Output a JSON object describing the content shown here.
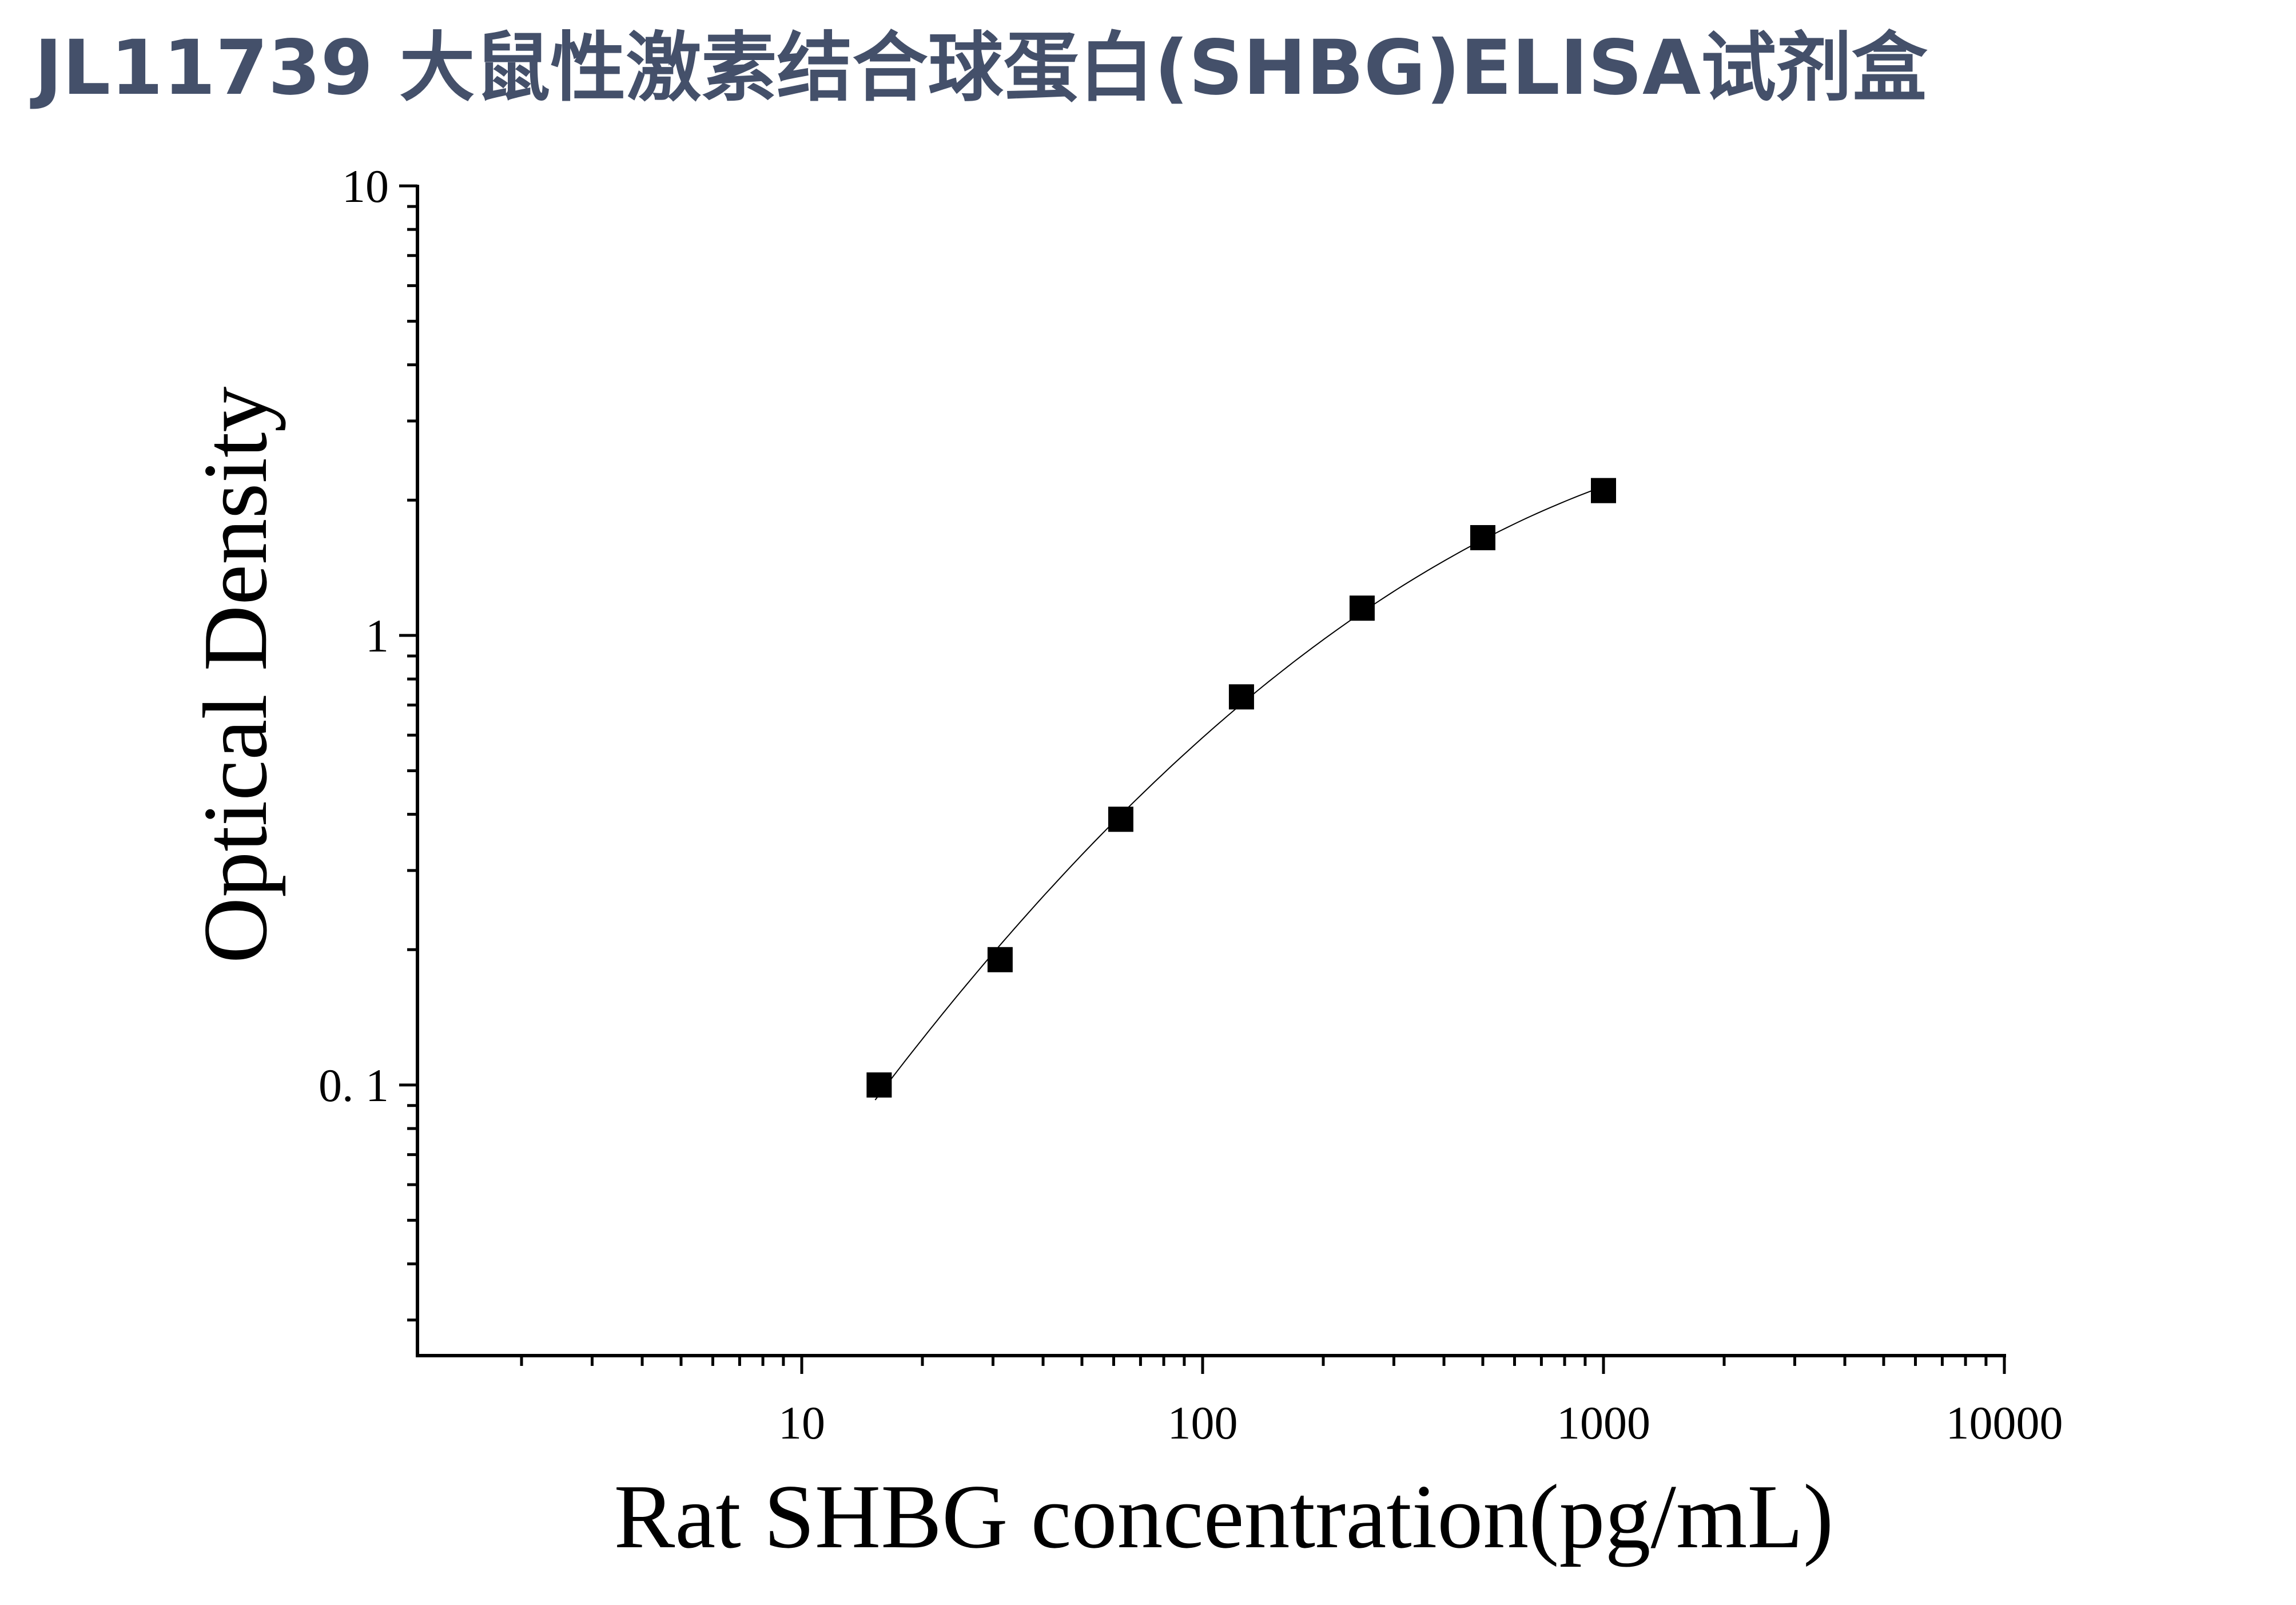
{
  "title": "JL11739 大鼠性激素结合球蛋白(SHBG)ELISA试剂盒",
  "chart_data": {
    "type": "scatter",
    "title": "JL11739 大鼠性激素结合球蛋白(SHBG)ELISA试剂盒",
    "xlabel": "Rat SHBG concentration(pg/mL)",
    "ylabel": "Optical Density",
    "xscale": "log",
    "yscale": "log",
    "xlim": [
      1.1,
      10000
    ],
    "ylim": [
      0.025,
      10
    ],
    "xticks": [
      10,
      100,
      1000,
      10000
    ],
    "xtick_labels": [
      "10",
      "100",
      "1000",
      "10000"
    ],
    "yticks": [
      0.1,
      1,
      10
    ],
    "ytick_labels": [
      "0. 1",
      "1",
      "10"
    ],
    "grid": false,
    "marker": "square",
    "marker_color": "#000000",
    "curve": "fitted",
    "series": [
      {
        "x": [
          15.6,
          31.25,
          62.5,
          125,
          250,
          500,
          1000
        ],
        "y": [
          0.1,
          0.19,
          0.39,
          0.73,
          1.15,
          1.65,
          2.1
        ]
      }
    ]
  }
}
